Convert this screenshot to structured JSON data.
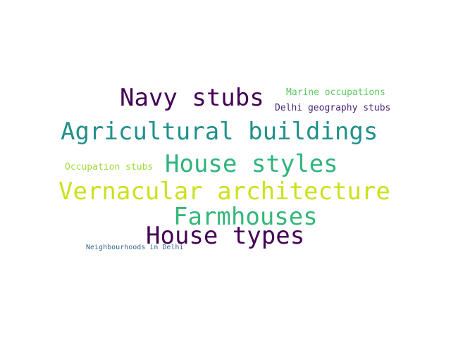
{
  "words": [
    {
      "text": "Navy stubs",
      "color": "#440154"
    },
    {
      "text": "Marine occupations",
      "color": "#5ec962"
    },
    {
      "text": "Delhi geography stubs",
      "color": "#482475"
    },
    {
      "text": "Agricultural buildings",
      "color": "#21918c"
    },
    {
      "text": "Occupation stubs",
      "color": "#a0da39"
    },
    {
      "text": "House styles",
      "color": "#2fb47c"
    },
    {
      "text": "Vernacular architecture",
      "color": "#cde11d"
    },
    {
      "text": "Farmhouses",
      "color": "#35b779"
    },
    {
      "text": "House types",
      "color": "#440154"
    },
    {
      "text": "Neighbourhoods in Delhi",
      "color": "#31688e"
    }
  ]
}
